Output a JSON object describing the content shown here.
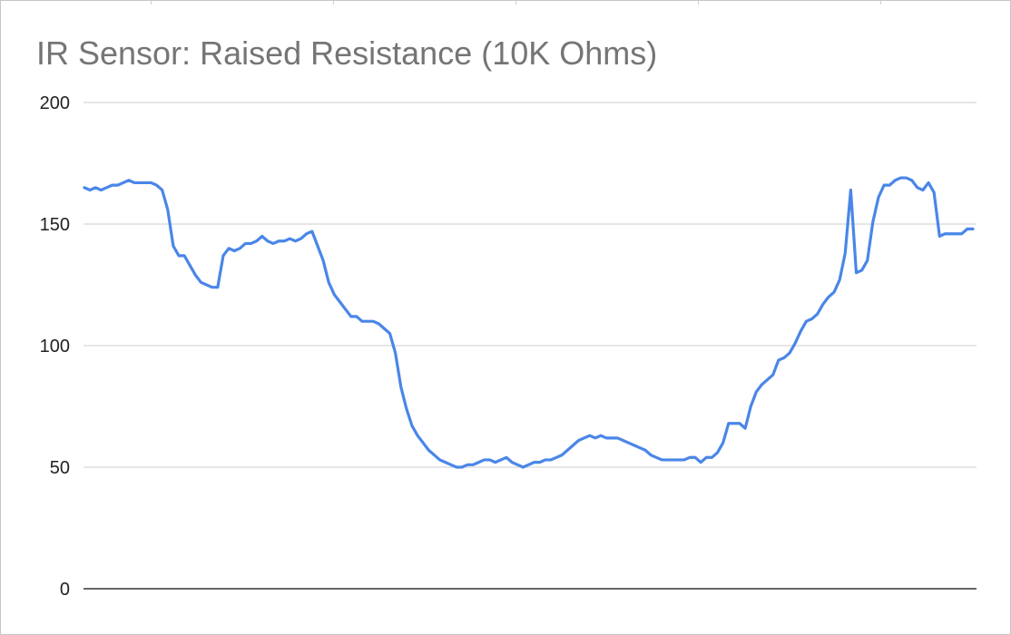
{
  "chart_data": {
    "type": "line",
    "title": "IR Sensor: Raised Resistance (10K Ohms)",
    "xlabel": "",
    "ylabel": "",
    "ylim": [
      0,
      200
    ],
    "yticks": [
      0,
      50,
      100,
      150,
      200
    ],
    "grid": true,
    "legend": "none",
    "series": [
      {
        "color": "#4a86e8",
        "values": [
          165,
          164,
          165,
          164,
          165,
          166,
          166,
          167,
          168,
          167,
          167,
          167,
          167,
          166,
          164,
          156,
          141,
          137,
          137,
          133,
          129,
          126,
          125,
          124,
          124,
          137,
          140,
          139,
          140,
          142,
          142,
          143,
          145,
          143,
          142,
          143,
          143,
          144,
          143,
          144,
          146,
          147,
          141,
          135,
          126,
          121,
          118,
          115,
          112,
          112,
          110,
          110,
          110,
          109,
          107,
          105,
          97,
          83,
          74,
          67,
          63,
          60,
          57,
          55,
          53,
          52,
          51,
          50,
          50,
          51,
          51,
          52,
          53,
          53,
          52,
          53,
          54,
          52,
          51,
          50,
          51,
          52,
          52,
          53,
          53,
          54,
          55,
          57,
          59,
          61,
          62,
          63,
          62,
          63,
          62,
          62,
          62,
          61,
          60,
          59,
          58,
          57,
          55,
          54,
          53,
          53,
          53,
          53,
          53,
          54,
          54,
          52,
          54,
          54,
          56,
          60,
          68,
          68,
          68,
          66,
          75,
          81,
          84,
          86,
          88,
          94,
          95,
          97,
          101,
          106,
          110,
          111,
          113,
          117,
          120,
          122,
          127,
          138,
          164,
          130,
          131,
          135,
          151,
          161,
          166,
          166,
          168,
          169,
          169,
          168,
          165,
          164,
          167,
          163,
          145,
          146,
          146,
          146,
          146,
          148,
          148
        ]
      }
    ]
  },
  "colors": {
    "line": "#4a86e8",
    "gridline": "#cccccc",
    "baseline": "#333333",
    "title": "#757575"
  }
}
